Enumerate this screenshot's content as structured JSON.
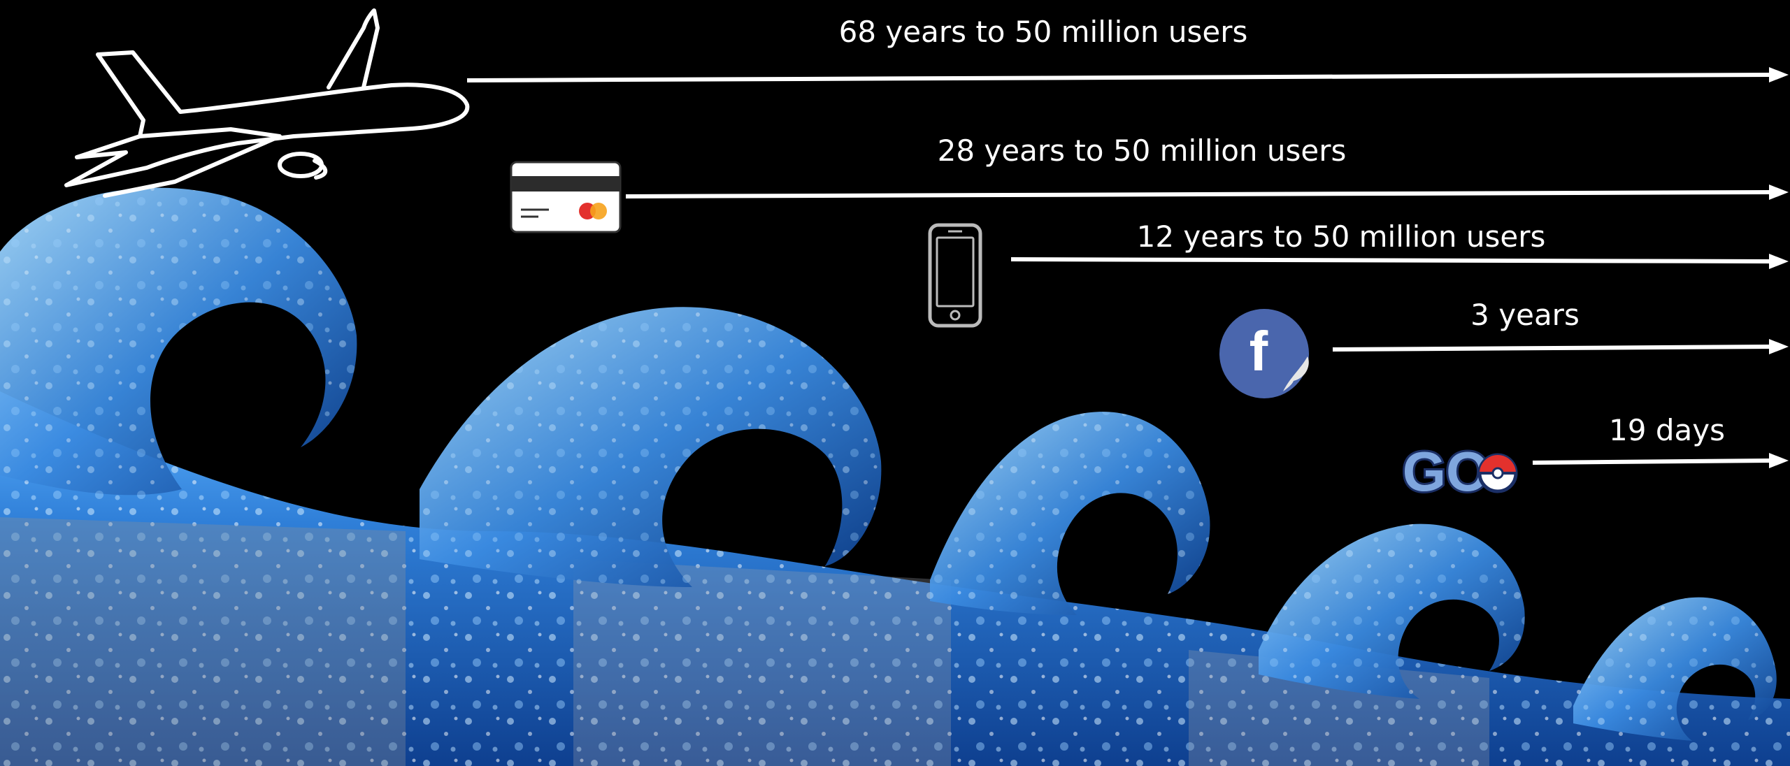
{
  "colors": {
    "background": "#000000",
    "arrow": "#ffffff",
    "water_light": "#7cc4ff",
    "water_mid": "#2f7fd8",
    "water_dark": "#0b3c8a",
    "facebook_blue": "#4a66ad"
  },
  "rows": [
    {
      "id": "airplane",
      "icon": "airplane-icon",
      "label": "68 years to 50 million users"
    },
    {
      "id": "credit-card",
      "icon": "credit-card-icon",
      "label": "28 years to 50 million users"
    },
    {
      "id": "mobile-phone",
      "icon": "mobile-phone-icon",
      "label": "12 years to 50 million users"
    },
    {
      "id": "facebook",
      "icon": "facebook-icon",
      "label": "3 years",
      "icon_text": "f"
    },
    {
      "id": "pokemon-go",
      "icon": "pokemon-go-icon",
      "label": "19 days",
      "icon_text": "GO"
    }
  ],
  "background_art": "blue-water-waves"
}
